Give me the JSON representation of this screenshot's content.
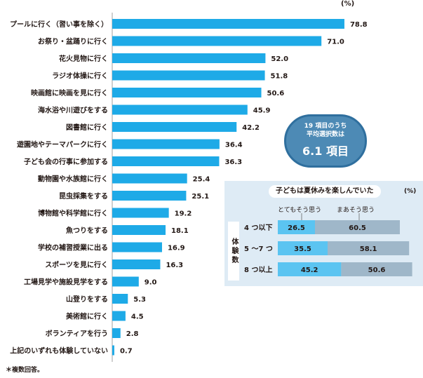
{
  "unit": "(%)",
  "note": "＊複数回答。",
  "badge": {
    "line1": "19 項目のうち",
    "line2": "平均選択数は",
    "line3": "6.1 項目"
  },
  "chart_data": [
    {
      "type": "bar",
      "orientation": "horizontal",
      "unit": "(%)",
      "categories": [
        "プールに行く（習い事を除く）",
        "お祭り・盆踊りに行く",
        "花火見物に行く",
        "ラジオ体操に行く",
        "映画館に映画を見に行く",
        "海水浴や川遊びをする",
        "図書館に行く",
        "遊園地やテーマパークに行く",
        "子ども会の行事に参加する",
        "動物園や水族館に行く",
        "昆虫採集をする",
        "博物館や科学館に行く",
        "魚つりをする",
        "学校の補習授業に出る",
        "スポーツを見に行く",
        "工場見学や施設見学をする",
        "山登りをする",
        "美術館に行く",
        "ボランティアを行う",
        "上記のいずれも体験していない"
      ],
      "values": [
        78.8,
        71.0,
        52.0,
        51.8,
        50.6,
        45.9,
        42.2,
        36.4,
        36.3,
        25.4,
        25.1,
        19.2,
        18.1,
        16.9,
        16.3,
        9.0,
        5.3,
        4.5,
        2.8,
        0.7
      ],
      "value_labels": [
        "78.8",
        "71.0",
        "52.0",
        "51.8",
        "50.6",
        "45.9",
        "42.2",
        "36.4",
        "36.3",
        "25.4",
        "25.1",
        "19.2",
        "18.1",
        "16.9",
        "16.3",
        "9.0",
        "5.3",
        "4.5",
        "2.8",
        "0.7"
      ],
      "xlim": [
        0,
        100
      ],
      "colors": {
        "bar": "#1eaae7"
      }
    },
    {
      "type": "bar",
      "orientation": "horizontal",
      "stacked": true,
      "title": "子どもは夏休みを楽しんでいた",
      "unit": "(%)",
      "ylabel": "体験数",
      "categories": [
        "4 つ以下",
        "5 ～7 つ",
        "8 つ以上"
      ],
      "series": [
        {
          "name": "とてもそう思う",
          "values": [
            26.5,
            35.5,
            45.2
          ],
          "labels": [
            "26.5",
            "35.5",
            "45.2"
          ],
          "color": "#5bc4f1"
        },
        {
          "name": "まあそう思う",
          "values": [
            60.5,
            58.1,
            50.6
          ],
          "labels": [
            "60.5",
            "58.1",
            "50.6"
          ],
          "color": "#9fb7c9"
        }
      ],
      "xlim": [
        0,
        100
      ]
    }
  ]
}
